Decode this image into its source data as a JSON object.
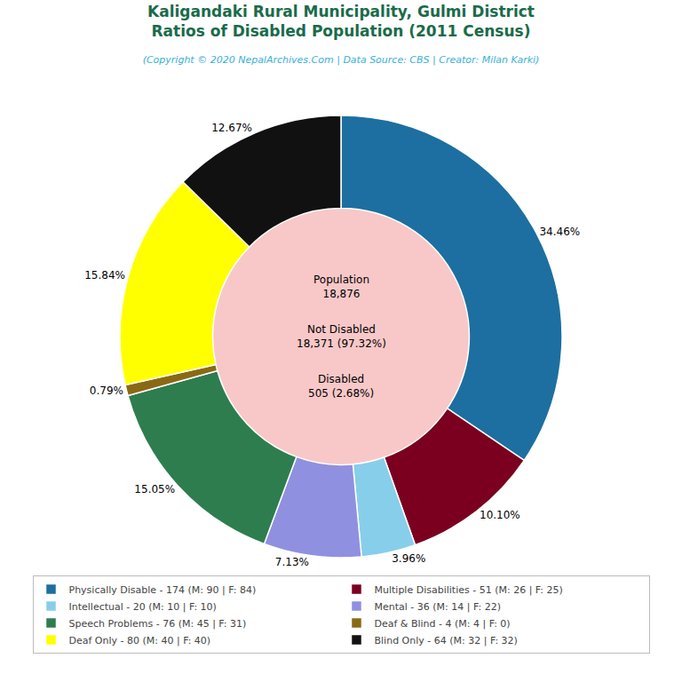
{
  "chart_data": {
    "type": "pie",
    "title": "Kaligandaki Rural Municipality, Gulmi District\nRatios of Disabled Population (2011 Census)",
    "title_color": "#1a6b4a",
    "subtitle": "(Copyright © 2020 NepalArchives.Com | Data Source: CBS | Creator: Milan Karki)",
    "subtitle_color": "#3ab0d8",
    "categories": [
      "Physically Disable - 174 (M: 90 | F: 84)",
      "Multiple Disabilities - 51 (M: 26 | F: 25)",
      "Intellectual - 20 (M: 10 | F: 10)",
      "Mental - 36 (M: 14 | F: 22)",
      "Speech Problems - 76 (M: 45 | F: 31)",
      "Deaf & Blind - 4 (M: 4 | F: 0)",
      "Deaf Only - 80 (M: 40 | F: 40)",
      "Blind Only - 64 (M: 32 | F: 32)"
    ],
    "values": [
      34.46,
      10.1,
      3.96,
      7.13,
      15.05,
      0.79,
      15.84,
      12.67
    ],
    "value_labels": [
      "34.46%",
      "10.10%",
      "3.96%",
      "7.13%",
      "15.05%",
      "0.79%",
      "15.84%",
      "12.67%"
    ],
    "colors": [
      "#1c6fa0",
      "#7b0020",
      "#87ceeb",
      "#9090e0",
      "#2e7d4f",
      "#8b6914",
      "#ffff00",
      "#111111"
    ],
    "data_labels": true,
    "center_color": "#f8c8c8",
    "annotations": [
      "Population\n18,876",
      "Not Disabled\n18,371 (97.32%)",
      "Disabled\n505 (2.68%)"
    ],
    "legend": "bottom"
  }
}
